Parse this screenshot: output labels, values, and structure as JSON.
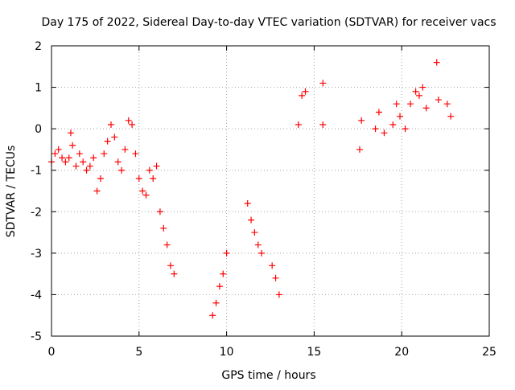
{
  "chart_data": {
    "type": "scatter",
    "title": "Day 175 of 2022, Sidereal Day-to-day VTEC variation (SDTVAR) for receiver vacs",
    "xlabel": "GPS time / hours",
    "ylabel": "SDTVAR / TECUs",
    "xlim": [
      0,
      25
    ],
    "ylim": [
      -5,
      2
    ],
    "x_ticks": [
      0,
      5,
      10,
      15,
      20,
      25
    ],
    "y_ticks": [
      -5,
      -4,
      -3,
      -2,
      -1,
      0,
      1,
      2
    ],
    "x_tick_labels": [
      "0",
      "5",
      "10",
      "15",
      "20",
      "25"
    ],
    "y_tick_labels": [
      "-5",
      "-4",
      "-3",
      "-2",
      "-1",
      "0",
      "1",
      "2"
    ],
    "grid": true,
    "marker": "+",
    "series": [
      {
        "name": "vacs",
        "color": "#ff0000",
        "x": [
          0.0,
          0.2,
          0.4,
          0.6,
          0.8,
          1.0,
          1.1,
          1.2,
          1.4,
          1.6,
          1.8,
          2.0,
          2.2,
          2.4,
          2.6,
          2.8,
          3.0,
          3.2,
          3.4,
          3.6,
          3.8,
          4.0,
          4.2,
          4.4,
          4.6,
          4.8,
          5.0,
          5.2,
          5.4,
          5.6,
          5.8,
          6.0,
          6.2,
          6.4,
          6.6,
          6.8,
          7.0,
          9.2,
          9.4,
          9.6,
          9.8,
          10.0,
          11.2,
          11.4,
          11.6,
          11.8,
          12.0,
          12.6,
          12.8,
          13.0,
          14.1,
          14.3,
          14.5,
          15.5,
          15.5,
          17.6,
          17.7,
          18.5,
          18.7,
          19.0,
          19.5,
          19.7,
          19.9,
          20.2,
          20.5,
          20.8,
          21.0,
          21.2,
          21.4,
          22.0,
          22.1,
          22.6,
          22.8
        ],
        "y": [
          -0.8,
          -0.6,
          -0.5,
          -0.7,
          -0.8,
          -0.7,
          -0.1,
          -0.4,
          -0.9,
          -0.6,
          -0.8,
          -1.0,
          -0.9,
          -0.7,
          -1.5,
          -1.2,
          -0.6,
          -0.3,
          0.1,
          -0.2,
          -0.8,
          -1.0,
          -0.5,
          0.2,
          0.1,
          -0.6,
          -1.2,
          -1.5,
          -1.6,
          -1.0,
          -1.2,
          -0.9,
          -2.0,
          -2.4,
          -2.8,
          -3.3,
          -3.5,
          -4.5,
          -4.2,
          -3.8,
          -3.5,
          -3.0,
          -1.8,
          -2.2,
          -2.5,
          -2.8,
          -3.0,
          -3.3,
          -3.6,
          -4.0,
          0.1,
          0.8,
          0.9,
          0.1,
          1.1,
          -0.5,
          0.2,
          0.0,
          0.4,
          -0.1,
          0.1,
          0.6,
          0.3,
          0.0,
          0.6,
          0.9,
          0.8,
          1.0,
          0.5,
          1.6,
          0.7,
          0.6,
          0.3
        ]
      }
    ]
  }
}
